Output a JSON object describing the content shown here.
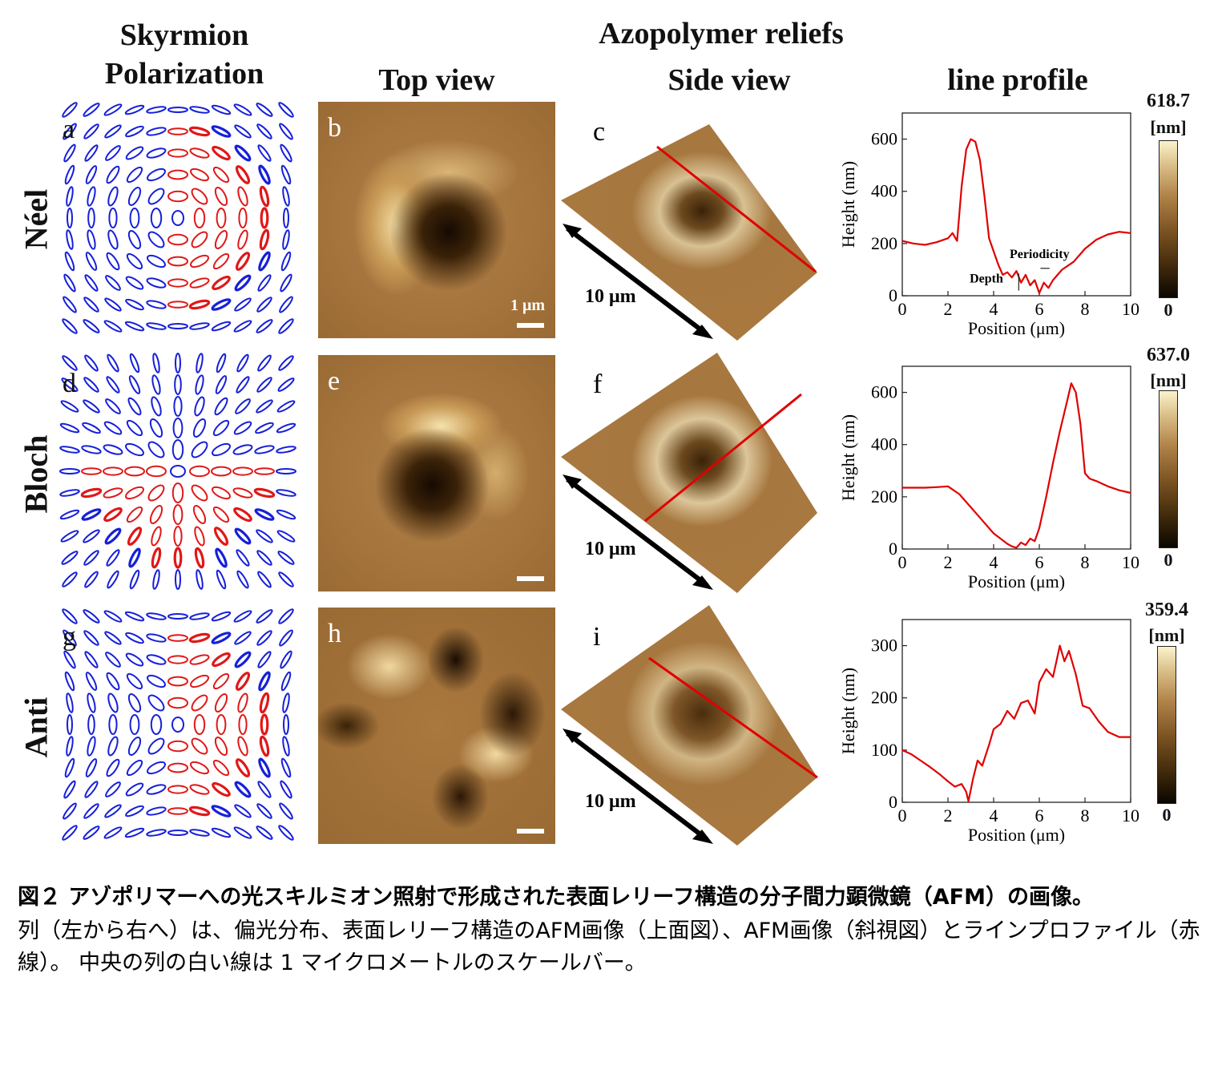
{
  "headers": {
    "skyrmion_line1": "Skyrmion",
    "skyrmion_line2": "Polarization",
    "azopolymer": "Azopolymer reliefs",
    "top_view": "Top view",
    "side_view": "Side view",
    "line_profile": "line profile"
  },
  "rows": [
    {
      "name": "Néel",
      "labels": [
        "a",
        "b",
        "c"
      ],
      "colorbar_max": "618.7",
      "colorbar_unit": "[nm]",
      "colorbar_min": "0",
      "side_scale": "10 μm"
    },
    {
      "name": "Bloch",
      "labels": [
        "d",
        "e",
        "f"
      ],
      "colorbar_max": "637.0",
      "colorbar_unit": "[nm]",
      "colorbar_min": "0",
      "side_scale": "10 μm"
    },
    {
      "name": "Anti",
      "labels": [
        "g",
        "h",
        "i"
      ],
      "colorbar_max": "359.4",
      "colorbar_unit": "[nm]",
      "colorbar_min": "0",
      "side_scale": "10 μm"
    }
  ],
  "scale_bar_label": "1 μm",
  "chart_data": [
    {
      "type": "line",
      "title": "",
      "xlabel": "Position (μm)",
      "ylabel": "Height (nm)",
      "xlim": [
        0,
        10
      ],
      "ylim": [
        0,
        700
      ],
      "xticks": [
        0,
        2,
        4,
        6,
        8,
        10
      ],
      "yticks": [
        0,
        200,
        400,
        600
      ],
      "annotations": [
        "Periodicity",
        "Depth"
      ],
      "x": [
        0,
        0.5,
        1,
        1.5,
        2,
        2.2,
        2.4,
        2.6,
        2.8,
        3.0,
        3.2,
        3.4,
        3.6,
        3.8,
        4.0,
        4.2,
        4.4,
        4.6,
        4.8,
        5.0,
        5.2,
        5.4,
        5.6,
        5.8,
        6.0,
        6.2,
        6.4,
        6.6,
        6.8,
        7.0,
        7.5,
        8.0,
        8.5,
        9.0,
        9.5,
        10
      ],
      "y": [
        210,
        200,
        195,
        205,
        220,
        240,
        210,
        420,
        560,
        600,
        590,
        520,
        380,
        220,
        170,
        120,
        80,
        90,
        70,
        95,
        50,
        80,
        40,
        60,
        10,
        50,
        30,
        60,
        80,
        100,
        130,
        180,
        215,
        235,
        245,
        240
      ]
    },
    {
      "type": "line",
      "title": "",
      "xlabel": "Position (μm)",
      "ylabel": "Height (nm)",
      "xlim": [
        0,
        10
      ],
      "ylim": [
        0,
        700
      ],
      "xticks": [
        0,
        2,
        4,
        6,
        8,
        10
      ],
      "yticks": [
        0,
        200,
        400,
        600
      ],
      "x": [
        0,
        0.5,
        1,
        1.5,
        2,
        2.5,
        3,
        3.5,
        4,
        4.3,
        4.6,
        4.8,
        5.0,
        5.2,
        5.4,
        5.6,
        5.8,
        6.0,
        6.3,
        6.6,
        6.9,
        7.2,
        7.4,
        7.6,
        7.8,
        8.0,
        8.2,
        8.5,
        9.0,
        9.5,
        10
      ],
      "y": [
        235,
        235,
        235,
        237,
        240,
        210,
        160,
        110,
        60,
        40,
        20,
        10,
        5,
        25,
        15,
        40,
        30,
        80,
        200,
        330,
        450,
        560,
        635,
        600,
        480,
        290,
        270,
        260,
        240,
        225,
        215
      ]
    },
    {
      "type": "line",
      "title": "",
      "xlabel": "Position (μm)",
      "ylabel": "Height (nm)",
      "xlim": [
        0,
        10
      ],
      "ylim": [
        0,
        350
      ],
      "xticks": [
        0,
        2,
        4,
        6,
        8,
        10
      ],
      "yticks": [
        0,
        100,
        200,
        300
      ],
      "x": [
        0,
        0.4,
        0.8,
        1.2,
        1.6,
        2.0,
        2.3,
        2.6,
        2.8,
        2.9,
        3.1,
        3.3,
        3.5,
        3.8,
        4.0,
        4.3,
        4.6,
        4.9,
        5.2,
        5.5,
        5.8,
        6.0,
        6.3,
        6.6,
        6.9,
        7.1,
        7.3,
        7.6,
        7.9,
        8.2,
        8.6,
        9.0,
        9.5,
        10
      ],
      "y": [
        100,
        92,
        80,
        68,
        55,
        40,
        30,
        35,
        20,
        2,
        45,
        80,
        70,
        110,
        140,
        150,
        175,
        160,
        190,
        195,
        170,
        230,
        255,
        240,
        300,
        270,
        290,
        245,
        185,
        180,
        155,
        135,
        125,
        125
      ]
    }
  ],
  "caption": {
    "title": "図２ アゾポリマーへの光スキルミオン照射で形成された表面レリーフ構造の分子間力顕微鏡（AFM）の画像。",
    "body": "列（左から右へ）は、偏光分布、表面レリーフ構造のAFM画像（上面図）、AFM画像（斜視図）とラインプロファイル（赤線）。 中央の列の白い線は 1 マイクロメートルのスケールバー。"
  }
}
